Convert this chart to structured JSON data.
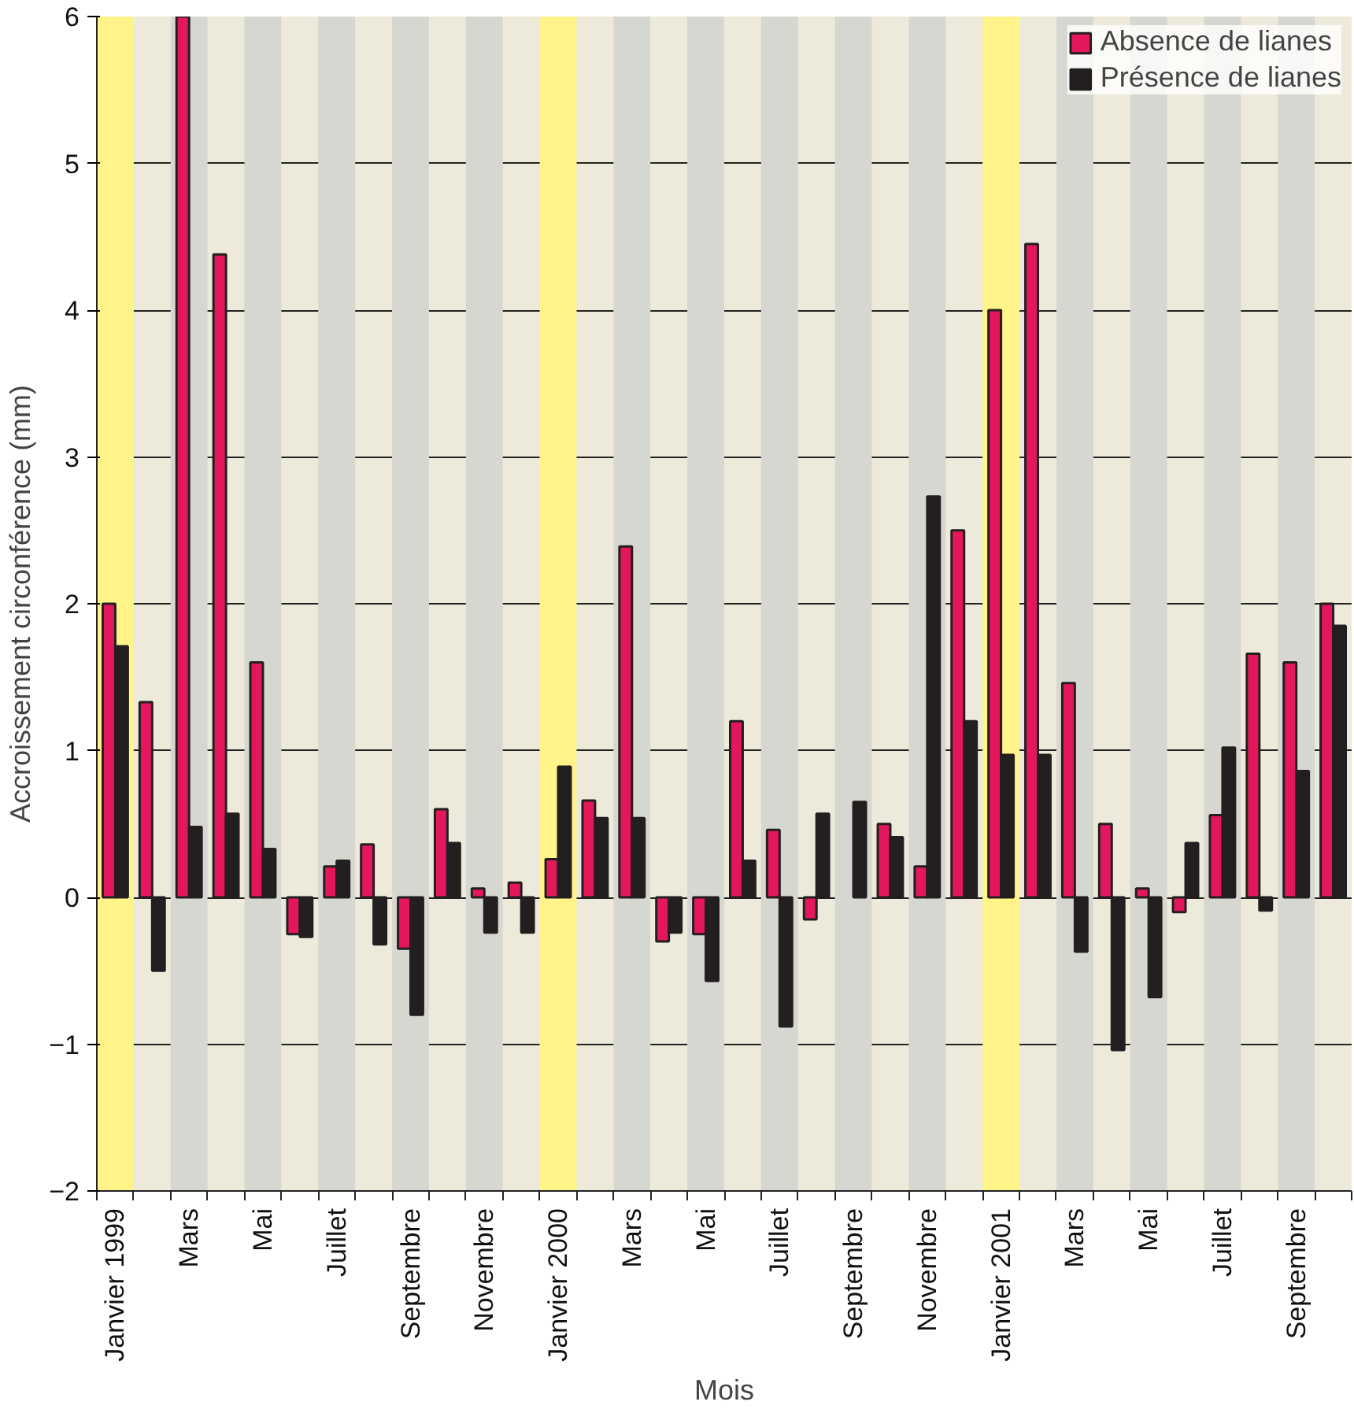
{
  "chart_data": {
    "type": "bar",
    "xlabel": "Mois",
    "ylabel": "Accroissement circonférence (mm)",
    "categories": [
      "Janvier 1999",
      null,
      "Mars",
      null,
      "Mai",
      null,
      "Juillet",
      null,
      "Septembre",
      null,
      "Novembre",
      null,
      "Janvier 2000",
      null,
      "Mars",
      null,
      "Mai",
      null,
      "Juillet",
      null,
      "Septembre",
      null,
      "Novembre",
      null,
      "Janvier 2001",
      null,
      "Mars",
      null,
      "Mai",
      null,
      "Juillet",
      null,
      "Septembre",
      null
    ],
    "series": [
      {
        "name": "Absence de lianes",
        "color": "#e5175c",
        "values": [
          2.0,
          1.33,
          6.0,
          4.38,
          1.6,
          -0.25,
          0.21,
          0.36,
          -0.35,
          0.6,
          0.06,
          0.1,
          0.26,
          0.66,
          2.39,
          -0.3,
          -0.25,
          1.2,
          0.46,
          -0.15,
          null,
          0.5,
          0.21,
          2.5,
          4.0,
          4.45,
          1.46,
          0.5,
          0.06,
          -0.1,
          0.56,
          1.66,
          1.6,
          2.0
        ]
      },
      {
        "name": "Présence de lianes",
        "color": "#231f20",
        "values": [
          1.71,
          -0.5,
          0.48,
          0.57,
          0.33,
          -0.27,
          0.25,
          -0.32,
          -0.8,
          0.37,
          -0.24,
          -0.24,
          0.89,
          0.54,
          0.54,
          -0.24,
          -0.57,
          0.25,
          -0.88,
          0.57,
          0.65,
          0.41,
          2.73,
          1.2,
          0.97,
          0.97,
          -0.37,
          -1.04,
          -0.68,
          0.37,
          1.02,
          -0.09,
          0.86,
          1.85
        ]
      }
    ],
    "ylim": [
      -2,
      6
    ],
    "yticks": [
      -2,
      -1,
      0,
      1,
      2,
      3,
      4,
      5,
      6
    ],
    "grid": "y",
    "legend": "top right"
  }
}
